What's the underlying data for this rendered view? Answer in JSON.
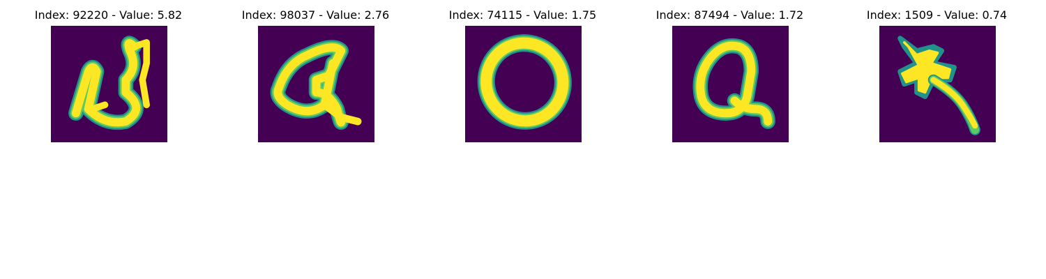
{
  "panels": [
    {
      "title": "Index: 92220 - Value: 5.82",
      "index": 92220,
      "value": 5.82
    },
    {
      "title": "Index: 98037 - Value: 2.76",
      "index": 98037,
      "value": 2.76
    },
    {
      "title": "Index: 74115 - Value: 1.75",
      "index": 74115,
      "value": 1.75
    },
    {
      "title": "Index: 87494 - Value: 1.72",
      "index": 87494,
      "value": 1.72
    },
    {
      "title": "Index: 1509 - Value: 0.74",
      "index": 1509,
      "value": 0.74
    }
  ],
  "colormap": {
    "background": "#440154",
    "edge": "#21918c",
    "mid": "#5ec962",
    "stroke": "#fde725"
  }
}
